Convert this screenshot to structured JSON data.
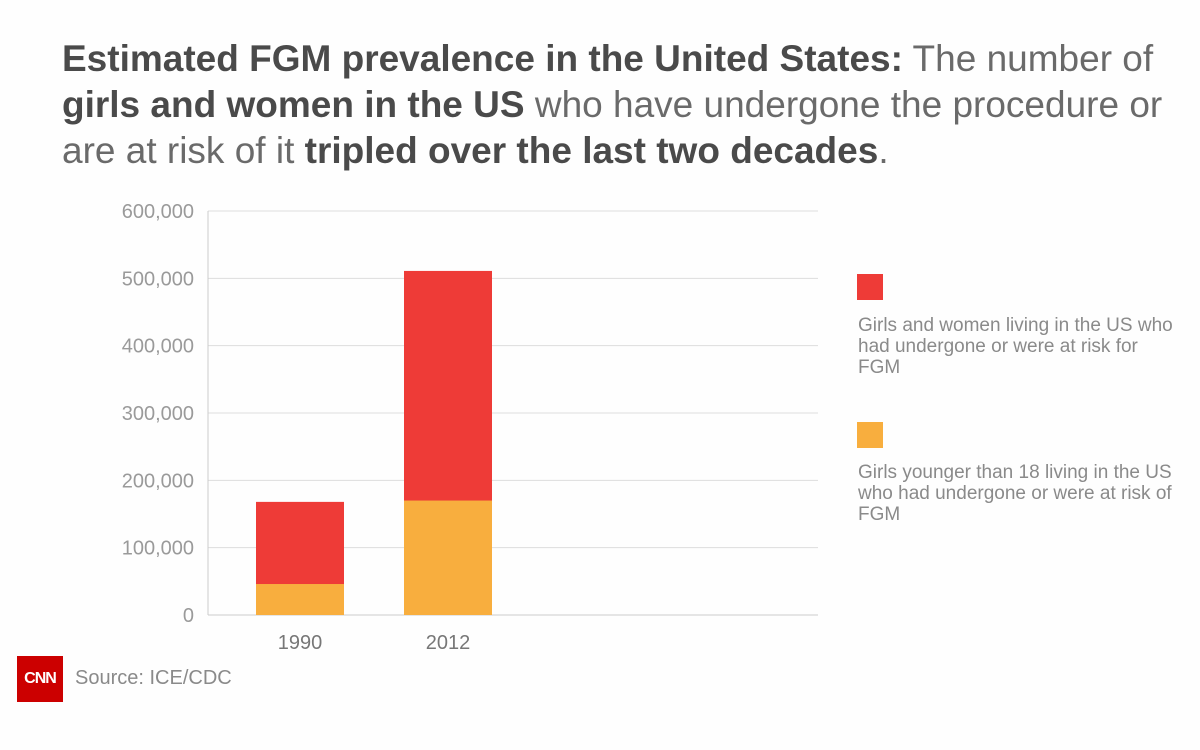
{
  "headline": {
    "part1": "Estimated FGM prevalence in the United States:",
    "part2": " The number of ",
    "part3": "girls and women in the US",
    "part4": " who have undergone the procedure or are at risk of it ",
    "part5": "tripled over the last two decades",
    "part6": "."
  },
  "colors": {
    "red": "#ee3b37",
    "orange": "#f8ae3e",
    "grid": "#dddddd",
    "axis": "#cccccc"
  },
  "legend": [
    {
      "color": "#ee3b37",
      "label": "Girls and women living in the US who had undergone or were at risk for FGM"
    },
    {
      "color": "#f8ae3e",
      "label": "Girls younger than 18 living in the US who had undergone or were at risk of FGM"
    }
  ],
  "source": {
    "logo": "CNN",
    "text": "Source:  ICE/CDC"
  },
  "chart_data": {
    "type": "bar",
    "categories": [
      "1990",
      "2012"
    ],
    "series": [
      {
        "name": "Girls younger than 18 living in the US who had undergone or were at risk of FGM",
        "values": [
          46000,
          170000
        ],
        "color": "#f8ae3e"
      },
      {
        "name": "Girls and women living in the US who had undergone or were at risk for FGM",
        "values": [
          168000,
          511000
        ],
        "color": "#ee3b37"
      }
    ],
    "overlay": true,
    "y_ticks": [
      "0",
      "100,000",
      "200,000",
      "300,000",
      "400,000",
      "500,000",
      "600,000"
    ],
    "ylim": [
      0,
      600000
    ],
    "grid": true,
    "legend_position": "right"
  }
}
